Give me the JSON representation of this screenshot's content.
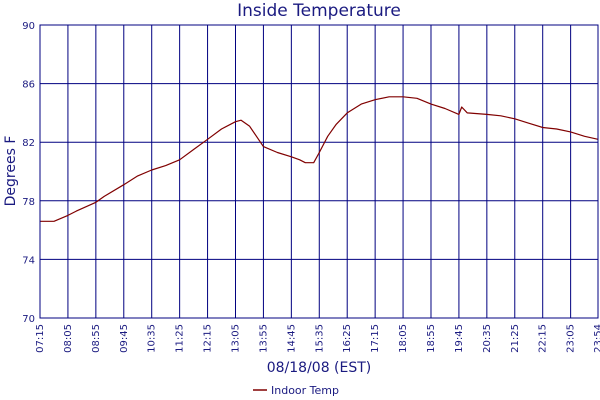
{
  "chart_data": {
    "type": "line",
    "title": "Inside Temperature",
    "xlabel": "08/18/08 (EST)",
    "ylabel": "Degrees F",
    "ylim": [
      70,
      90
    ],
    "yticks": [
      "70",
      "74",
      "78",
      "82",
      "86",
      "90"
    ],
    "xticks": [
      "07:15",
      "08:05",
      "08:55",
      "09:45",
      "10:35",
      "11:25",
      "12:15",
      "13:05",
      "13:55",
      "14:45",
      "15:35",
      "16:25",
      "17:15",
      "18:05",
      "18:55",
      "19:45",
      "20:35",
      "21:25",
      "22:15",
      "23:05",
      "23:54"
    ],
    "x_unit": "time of day",
    "grid": true,
    "legend_position": "bottom-center",
    "colors": {
      "series": "#800000",
      "grid": "#000080",
      "text": "#1a1a80"
    },
    "series": [
      {
        "name": "Indoor Temp",
        "x": [
          "07:15",
          "07:40",
          "08:05",
          "08:20",
          "08:55",
          "09:10",
          "09:45",
          "10:10",
          "10:35",
          "11:00",
          "11:25",
          "11:50",
          "12:15",
          "12:40",
          "13:05",
          "13:15",
          "13:30",
          "13:55",
          "14:20",
          "14:45",
          "15:00",
          "15:10",
          "15:25",
          "15:35",
          "15:50",
          "16:05",
          "16:25",
          "16:50",
          "17:15",
          "17:40",
          "18:05",
          "18:30",
          "18:55",
          "19:20",
          "19:45",
          "19:50",
          "20:00",
          "20:35",
          "21:00",
          "21:25",
          "21:50",
          "22:15",
          "22:40",
          "23:05",
          "23:30",
          "23:54"
        ],
        "values": [
          76.6,
          76.6,
          77.0,
          77.3,
          77.9,
          78.3,
          79.1,
          79.7,
          80.1,
          80.4,
          80.8,
          81.5,
          82.2,
          82.9,
          83.4,
          83.5,
          83.1,
          81.7,
          81.3,
          81.0,
          80.8,
          80.6,
          80.6,
          81.3,
          82.4,
          83.2,
          84.0,
          84.6,
          84.9,
          85.1,
          85.1,
          85.0,
          84.6,
          84.3,
          83.9,
          84.4,
          84.0,
          83.9,
          83.8,
          83.6,
          83.3,
          83.0,
          82.9,
          82.7,
          82.4,
          82.2
        ]
      }
    ]
  }
}
